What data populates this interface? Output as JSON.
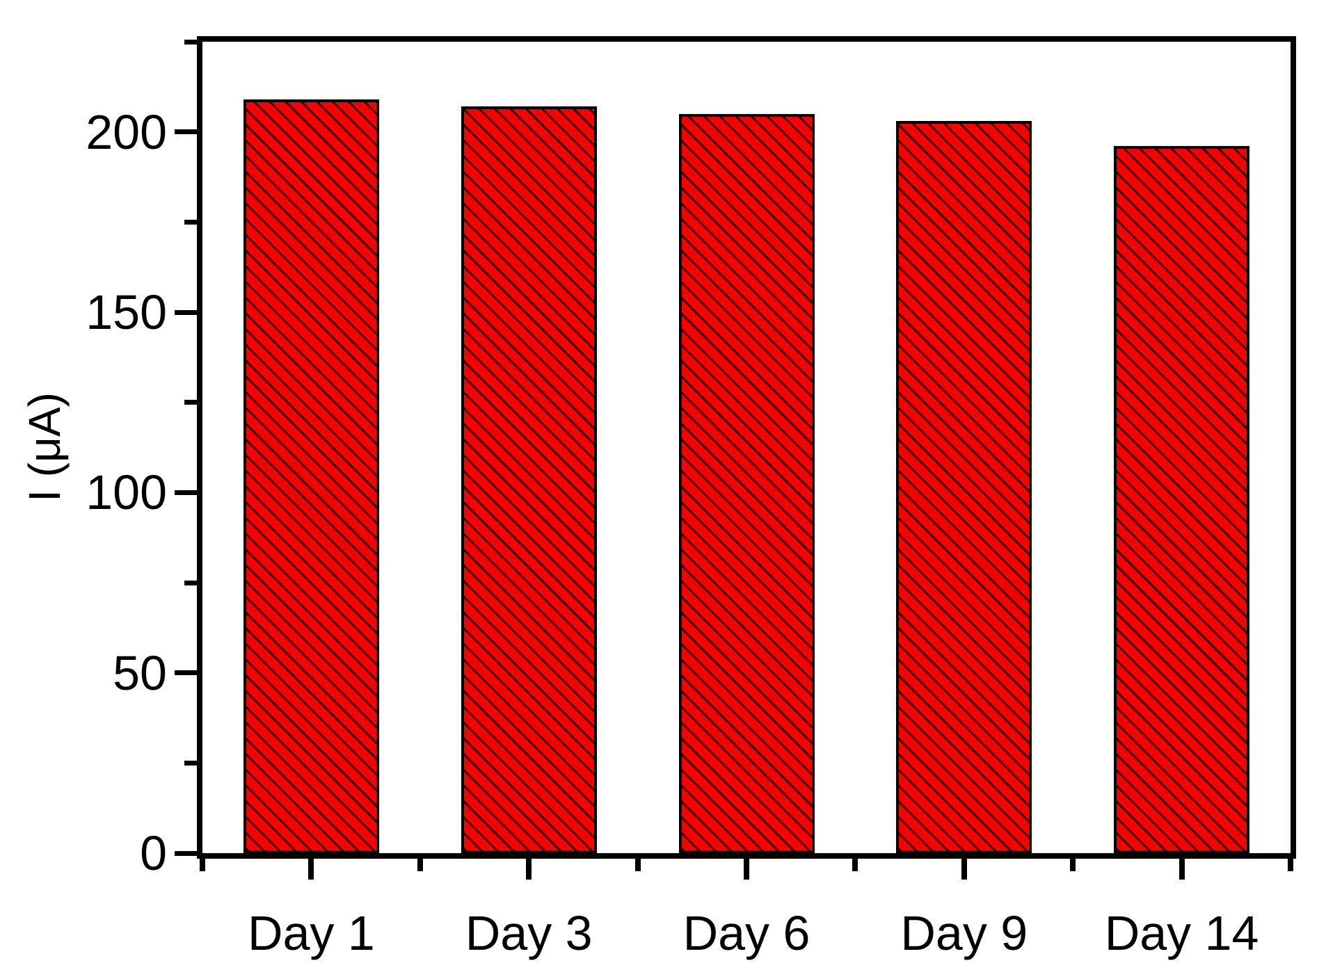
{
  "chart_data": {
    "type": "bar",
    "title": "",
    "xlabel": "",
    "ylabel": "I (μA)",
    "categories": [
      "Day 1",
      "Day 3",
      "Day 6",
      "Day 9",
      "Day 14"
    ],
    "values": [
      209,
      207,
      205,
      203,
      196
    ],
    "ylim": [
      0,
      225
    ],
    "y_major_ticks": [
      0,
      50,
      100,
      150,
      200
    ],
    "y_minor_ticks": [
      25,
      75,
      125,
      175,
      225
    ],
    "grid": false,
    "legend_position": "none",
    "bar_fill_color": "#f70000",
    "bar_hatch_color": "#3f0000",
    "bar_hatch_style": "backslash-diagonal",
    "bar_edge_color": "#000000",
    "axis_color": "#000000",
    "background_color": "#ffffff"
  }
}
